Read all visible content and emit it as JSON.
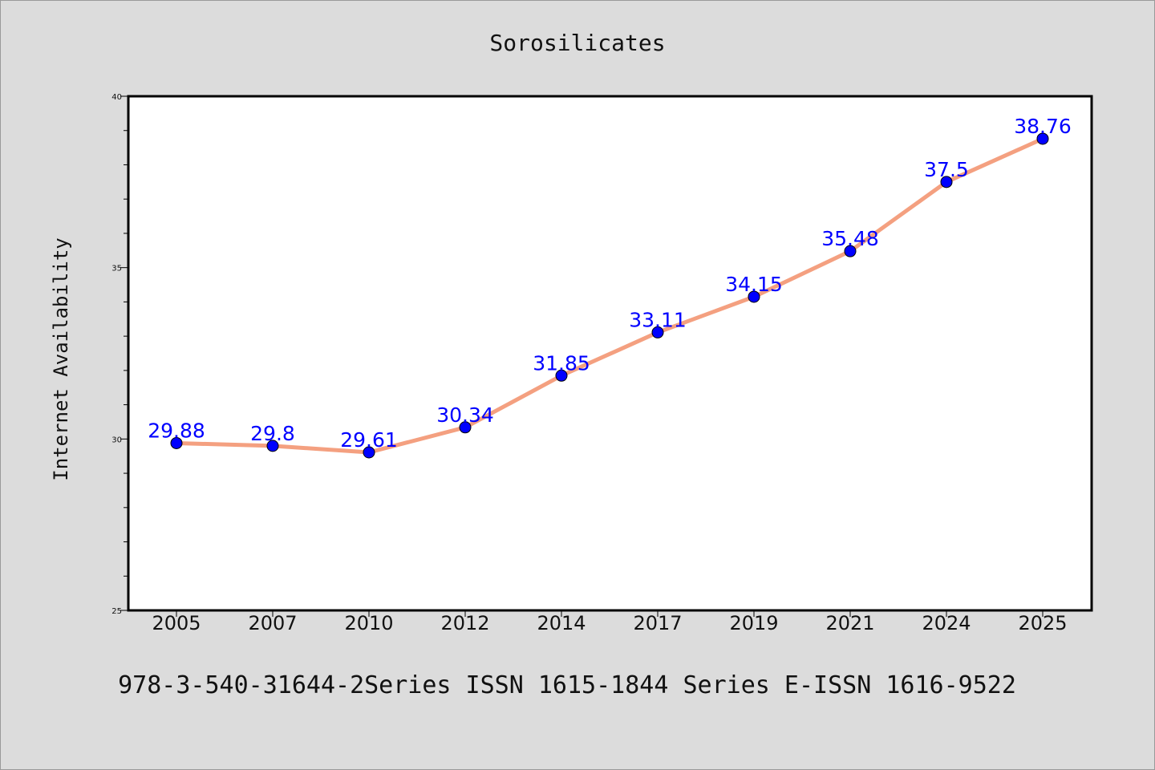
{
  "chart_data": {
    "type": "line",
    "title": "Sorosilicates",
    "ylabel": "Internet Availability",
    "xlabel": "",
    "categories": [
      "2005",
      "2007",
      "2010",
      "2012",
      "2014",
      "2017",
      "2019",
      "2021",
      "2024",
      "2025"
    ],
    "series": [
      {
        "values": [
          29.88,
          29.8,
          29.61,
          30.34,
          31.85,
          33.11,
          34.15,
          35.48,
          37.5,
          38.76
        ]
      }
    ],
    "data_labels": [
      "29.88",
      "29.8",
      "29.61",
      "30.34",
      "31.85",
      "33.11",
      "34.15",
      "35.48",
      "37.5",
      "38.76"
    ],
    "ylim": [
      25,
      40
    ],
    "yticks": [
      "25",
      "30",
      "35",
      "40"
    ],
    "grid": false,
    "line_color": "#f4a080",
    "marker_color": "#0000ff",
    "label_color": "#0000ff"
  },
  "footer": "978-3-540-31644-2Series ISSN 1615-1844 Series E-ISSN 1616-9522"
}
